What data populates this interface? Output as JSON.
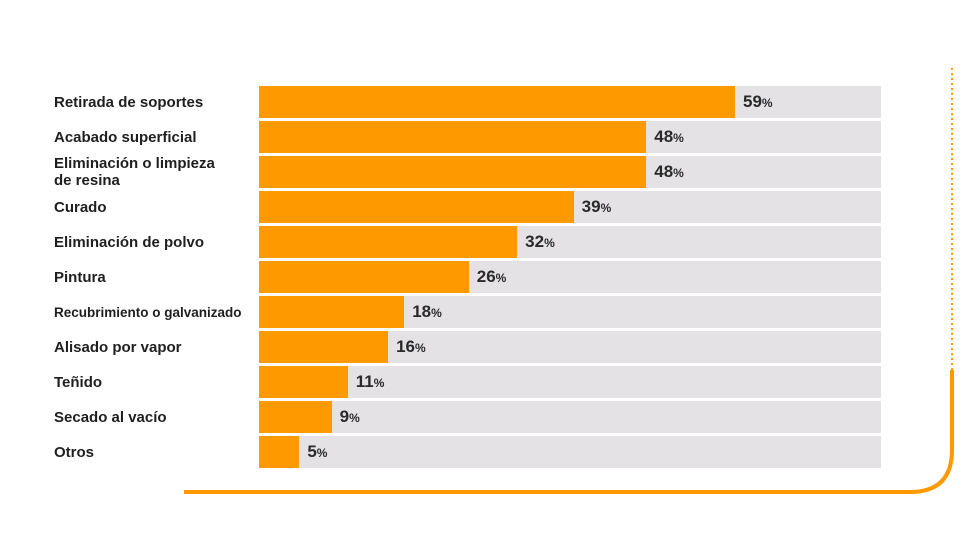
{
  "chart_data": {
    "type": "bar",
    "orientation": "horizontal",
    "categories": [
      "Retirada de soportes",
      "Acabado superficial",
      "Eliminación o limpieza de resina",
      "Curado",
      "Eliminación de polvo",
      "Pintura",
      "Recubrimiento o galvanizado",
      "Alisado por vapor",
      "Teñido",
      "Secado al vacío",
      "Otros"
    ],
    "category_lines": [
      [
        "Retirada de soportes"
      ],
      [
        "Acabado superficial"
      ],
      [
        "Eliminación o limpieza",
        "de resina"
      ],
      [
        "Curado"
      ],
      [
        "Eliminación de polvo"
      ],
      [
        "Pintura"
      ],
      [
        "Recubrimiento o galvanizado"
      ],
      [
        "Alisado por vapor"
      ],
      [
        "Teñido"
      ],
      [
        "Secado al vacío"
      ],
      [
        "Otros"
      ]
    ],
    "values": [
      59,
      48,
      48,
      39,
      32,
      26,
      18,
      16,
      11,
      9,
      5
    ],
    "value_suffix": "%",
    "xlim": [
      0,
      100
    ],
    "grid": false,
    "legend": "none",
    "colors": {
      "bar": "#ff9900",
      "track": "#e4e2e5",
      "accent_line": "#ff9900"
    }
  }
}
